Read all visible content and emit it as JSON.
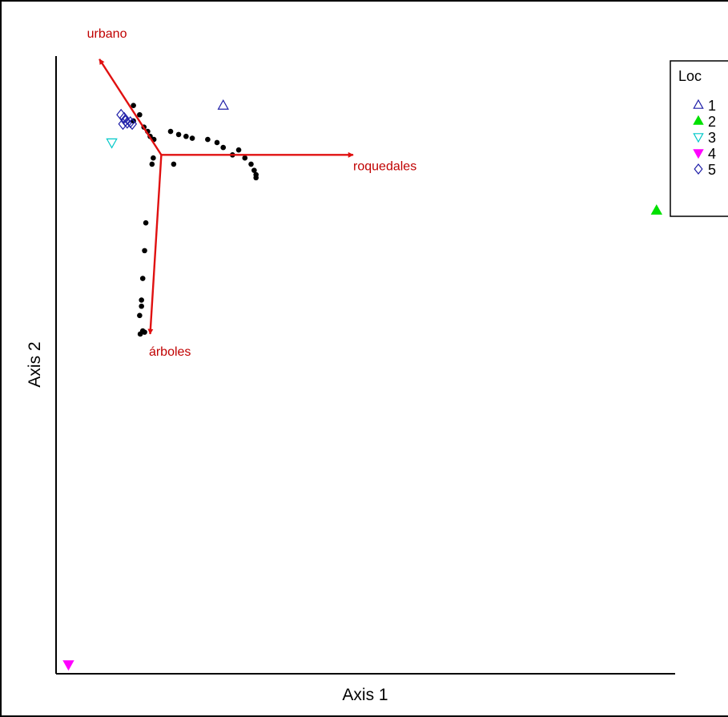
{
  "chart_data": {
    "type": "scatter",
    "title": "",
    "xlabel": "Axis 1",
    "ylabel": "Axis 2",
    "xlim": [
      0,
      100
    ],
    "ylim": [
      0,
      100
    ],
    "grid": false,
    "legend": {
      "title": "Loc",
      "placement": "top-right",
      "entries": [
        {
          "label": "1",
          "marker": "triangle-up-open",
          "color": "#1f1fa8"
        },
        {
          "label": "2",
          "marker": "triangle-up-filled",
          "color": "#00e000"
        },
        {
          "label": "3",
          "marker": "triangle-down-open",
          "color": "#00c8c8"
        },
        {
          "label": "4",
          "marker": "triangle-down-filled",
          "color": "#ff00ff"
        },
        {
          "label": "5",
          "marker": "diamond-open",
          "color": "#1f1fa8"
        }
      ]
    },
    "groups": [
      {
        "label": "1",
        "points": [
          {
            "x": 27,
            "y": 92
          }
        ]
      },
      {
        "label": "2",
        "points": [
          {
            "x": 97,
            "y": 75
          }
        ]
      },
      {
        "label": "3",
        "points": [
          {
            "x": 9,
            "y": 86
          }
        ]
      },
      {
        "label": "4",
        "points": [
          {
            "x": 2,
            "y": 1.5
          }
        ]
      },
      {
        "label": "5",
        "points": [
          {
            "x": 10.5,
            "y": 90.5
          },
          {
            "x": 11,
            "y": 90
          },
          {
            "x": 11.2,
            "y": 89.5
          },
          {
            "x": 11.5,
            "y": 89.2
          },
          {
            "x": 10.8,
            "y": 89
          },
          {
            "x": 12,
            "y": 89.3
          },
          {
            "x": 12.3,
            "y": 89
          }
        ]
      }
    ],
    "species_points": [
      {
        "x": 12.5,
        "y": 92
      },
      {
        "x": 13.5,
        "y": 90.5
      },
      {
        "x": 12.5,
        "y": 89.5
      },
      {
        "x": 14.2,
        "y": 88.5
      },
      {
        "x": 14.8,
        "y": 87.8
      },
      {
        "x": 15.2,
        "y": 87
      },
      {
        "x": 15.8,
        "y": 86.5
      },
      {
        "x": 18.5,
        "y": 87.8
      },
      {
        "x": 19.8,
        "y": 87.3
      },
      {
        "x": 21,
        "y": 87
      },
      {
        "x": 22,
        "y": 86.7
      },
      {
        "x": 24.5,
        "y": 86.5
      },
      {
        "x": 26,
        "y": 86
      },
      {
        "x": 27,
        "y": 85.2
      },
      {
        "x": 28.5,
        "y": 84
      },
      {
        "x": 29.5,
        "y": 84.8
      },
      {
        "x": 30.5,
        "y": 83.5
      },
      {
        "x": 31.5,
        "y": 82.5
      },
      {
        "x": 32,
        "y": 81.5
      },
      {
        "x": 32.3,
        "y": 80.8
      },
      {
        "x": 32.3,
        "y": 80.3
      },
      {
        "x": 15.5,
        "y": 82.5
      },
      {
        "x": 15.7,
        "y": 83.5
      },
      {
        "x": 19,
        "y": 82.5
      },
      {
        "x": 14.5,
        "y": 73
      },
      {
        "x": 14.3,
        "y": 68.5
      },
      {
        "x": 14,
        "y": 64
      },
      {
        "x": 13.8,
        "y": 60.5
      },
      {
        "x": 13.8,
        "y": 59.5
      },
      {
        "x": 13.5,
        "y": 58
      },
      {
        "x": 14,
        "y": 55.5
      },
      {
        "x": 13.6,
        "y": 55
      },
      {
        "x": 14.3,
        "y": 55.3
      }
    ],
    "vectors": [
      {
        "label": "urbano",
        "x0": 17,
        "y0": 84,
        "x1": 7,
        "y1": 99.5,
        "label_x": 5,
        "label_y": 103
      },
      {
        "label": "roquedales",
        "x0": 17,
        "y0": 84,
        "x1": 48,
        "y1": 84,
        "label_x": 48,
        "label_y": 81.5
      },
      {
        "label": "árboles",
        "x0": 17,
        "y0": 84,
        "x1": 15.2,
        "y1": 55,
        "label_x": 15,
        "label_y": 51.5
      }
    ],
    "colors": {
      "vector": "#e01010",
      "vector_label": "#c00000",
      "species_point": "#000000"
    }
  }
}
